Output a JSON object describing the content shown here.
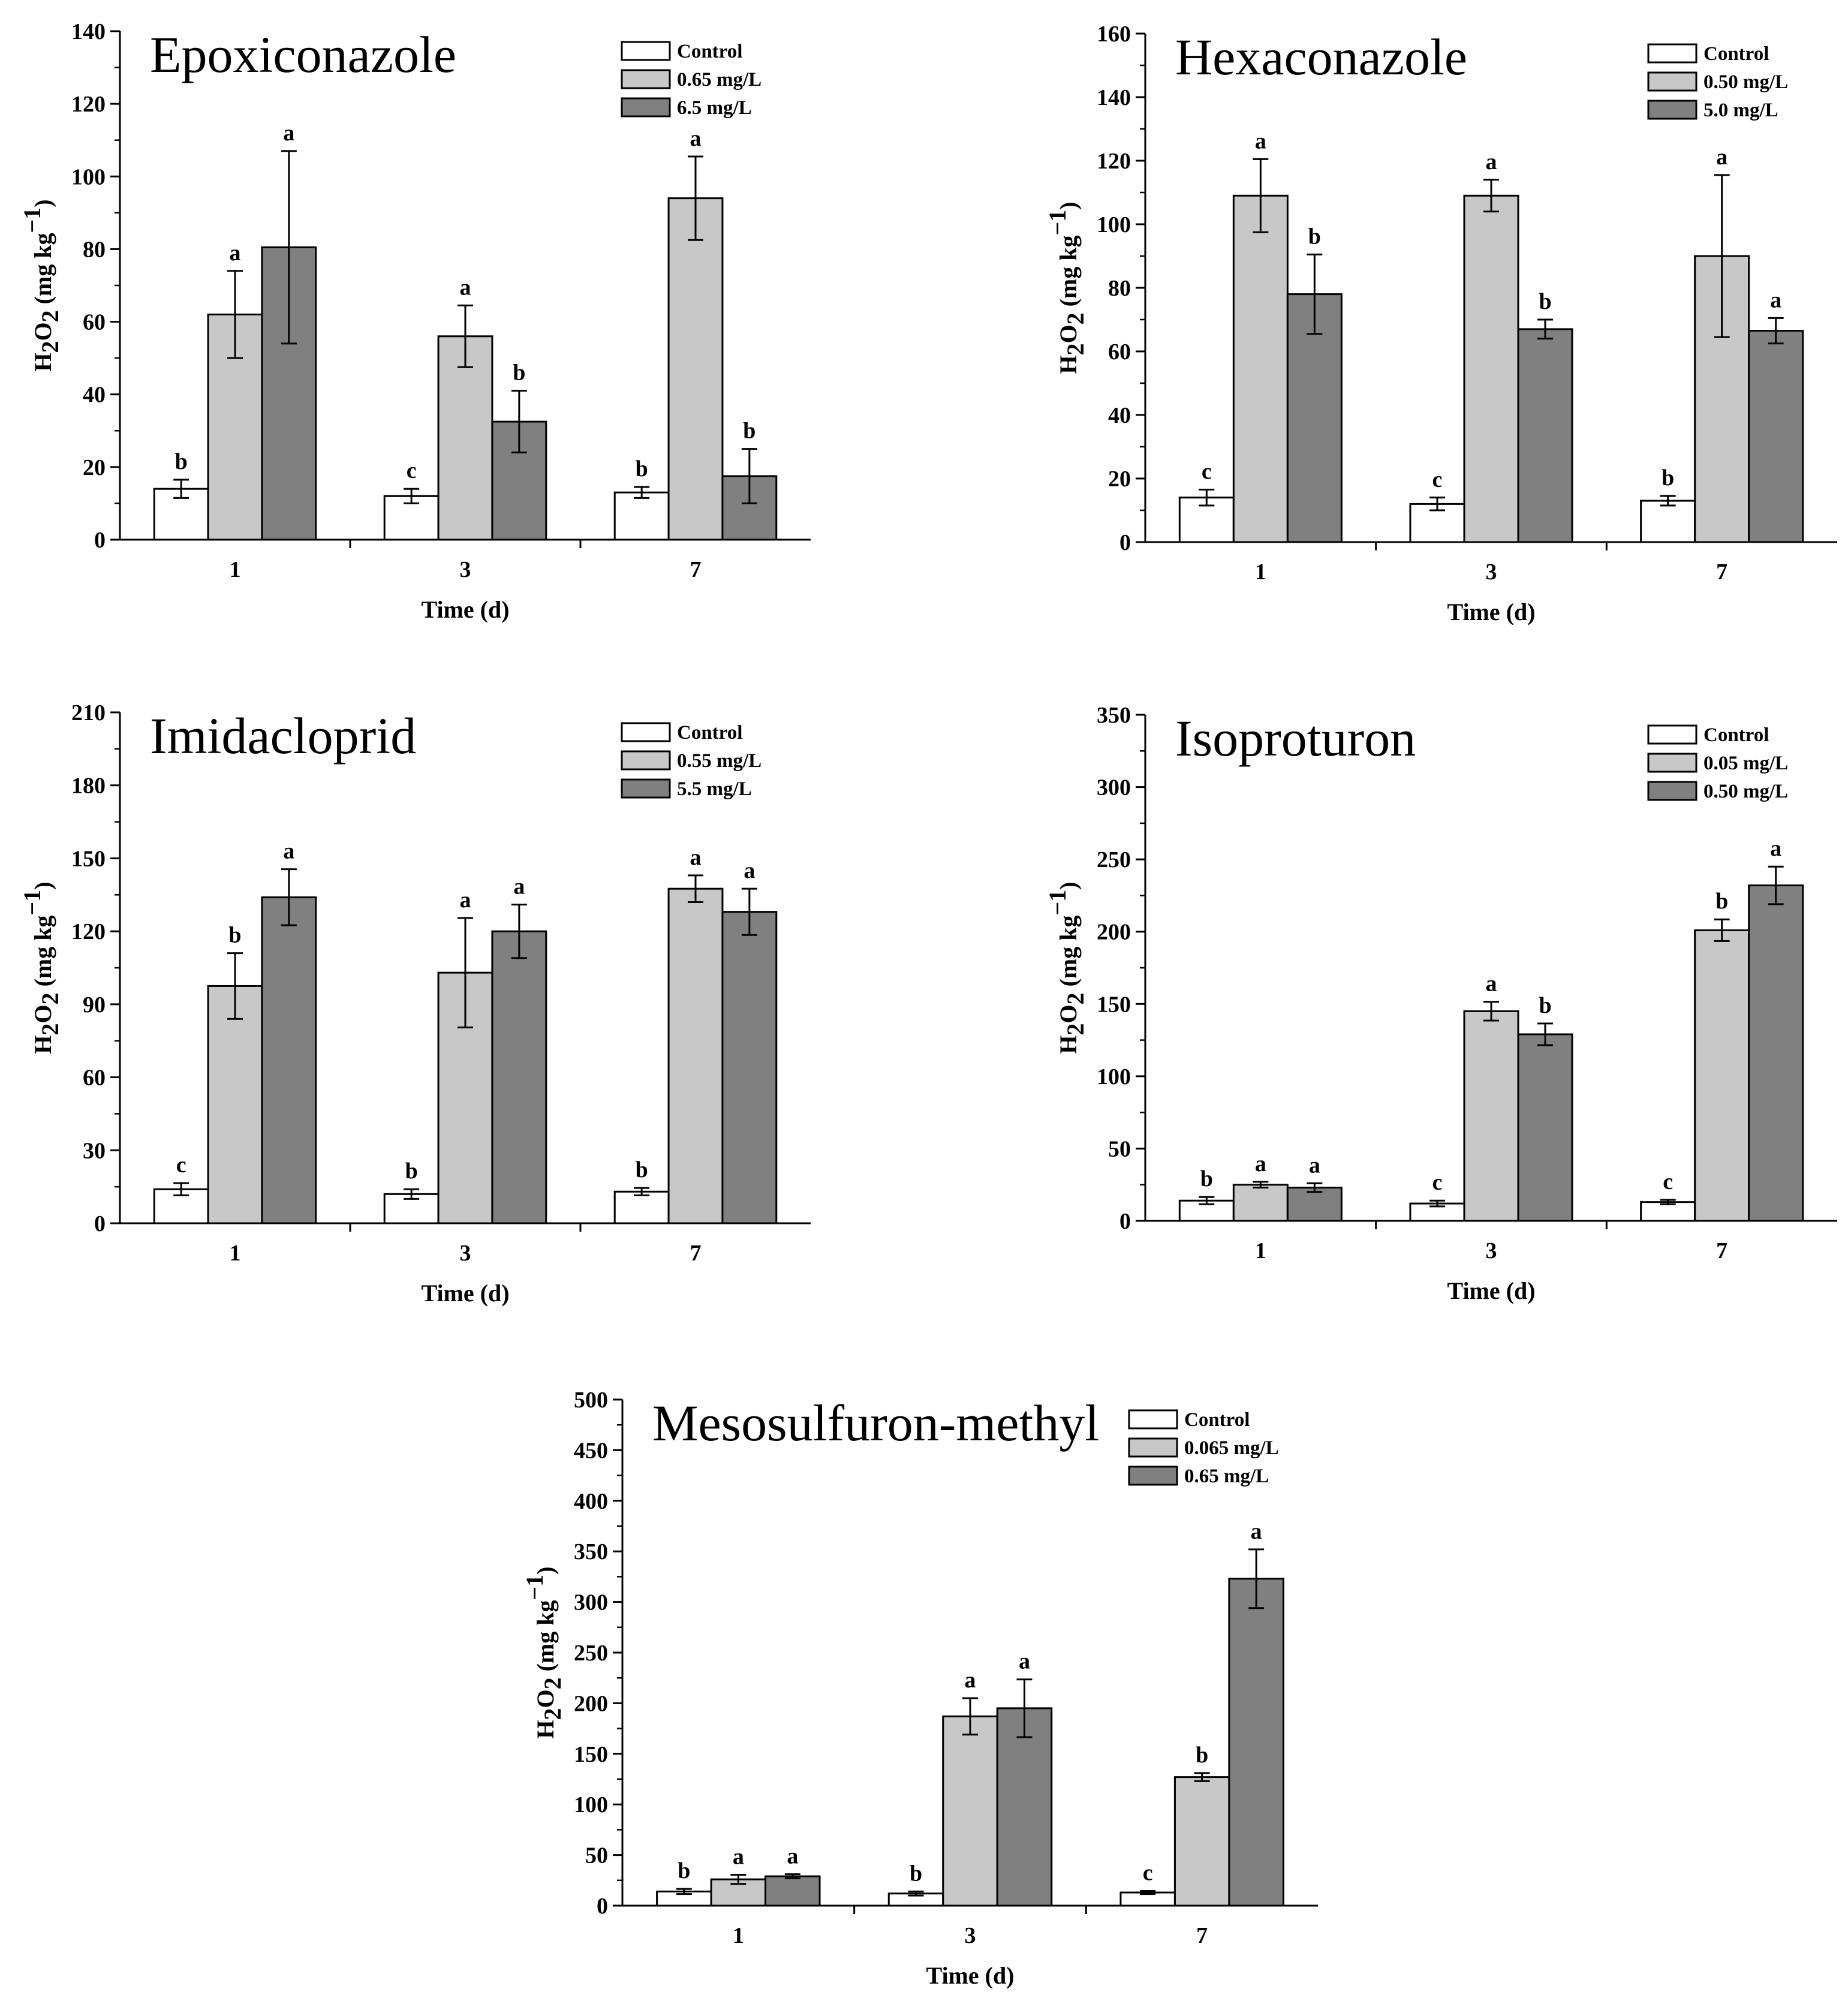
{
  "figure": {
    "colors": {
      "control": "#ffffff",
      "low": "#c8c8c8",
      "high": "#808080",
      "stroke": "#000000"
    }
  },
  "chart_data": [
    {
      "type": "bar",
      "title": "Epoxiconazole",
      "xlabel": "Time (d)",
      "ylabel": "H2O2 (mg kg-1)",
      "ylim": [
        0,
        140
      ],
      "yticks": [
        0,
        20,
        40,
        60,
        80,
        100,
        120,
        140
      ],
      "categories": [
        "1",
        "3",
        "7"
      ],
      "series": [
        {
          "name": "Control",
          "values": [
            14,
            12,
            13
          ],
          "errors": [
            2.5,
            2,
            1.5
          ],
          "letters": [
            "b",
            "c",
            "b"
          ]
        },
        {
          "name": "0.65 mg/L",
          "values": [
            62,
            56,
            94
          ],
          "errors": [
            12,
            8.5,
            11.5
          ],
          "letters": [
            "a",
            "a",
            "a"
          ]
        },
        {
          "name": "6.5 mg/L",
          "values": [
            80.5,
            32.5,
            17.5
          ],
          "errors": [
            26.5,
            8.5,
            7.5
          ],
          "letters": [
            "a",
            "b",
            "b"
          ]
        }
      ],
      "legend": "top-right"
    },
    {
      "type": "bar",
      "title": "Hexaconazole",
      "xlabel": "Time (d)",
      "ylabel": "H2O2 (mg kg-1)",
      "ylim": [
        0,
        160
      ],
      "yticks": [
        0,
        20,
        40,
        60,
        80,
        100,
        120,
        140,
        160
      ],
      "categories": [
        "1",
        "3",
        "7"
      ],
      "series": [
        {
          "name": "Control",
          "values": [
            14,
            12,
            13
          ],
          "errors": [
            2.5,
            2,
            1.5
          ],
          "letters": [
            "c",
            "c",
            "b"
          ]
        },
        {
          "name": "0.50 mg/L",
          "values": [
            109,
            109,
            90
          ],
          "errors": [
            11.5,
            5,
            25.5
          ],
          "letters": [
            "a",
            "a",
            "a"
          ]
        },
        {
          "name": "5.0 mg/L",
          "values": [
            78,
            67,
            66.5
          ],
          "errors": [
            12.5,
            3,
            4
          ],
          "letters": [
            "b",
            "b",
            "a"
          ]
        }
      ],
      "legend": "top-right"
    },
    {
      "type": "bar",
      "title": "Imidacloprid",
      "xlabel": "Time (d)",
      "ylabel": "H2O2 (mg kg-1)",
      "ylim": [
        0,
        210
      ],
      "yticks": [
        0,
        30,
        60,
        90,
        120,
        150,
        180,
        210
      ],
      "categories": [
        "1",
        "3",
        "7"
      ],
      "series": [
        {
          "name": "Control",
          "values": [
            14,
            12,
            13
          ],
          "errors": [
            2.5,
            2,
            1.5
          ],
          "letters": [
            "c",
            "b",
            "b"
          ]
        },
        {
          "name": "0.55 mg/L",
          "values": [
            97.5,
            103,
            137.5
          ],
          "errors": [
            13.5,
            22.5,
            5.5
          ],
          "letters": [
            "b",
            "a",
            "a"
          ]
        },
        {
          "name": "5.5 mg/L",
          "values": [
            134,
            120,
            128
          ],
          "errors": [
            11.5,
            11,
            9.5
          ],
          "letters": [
            "a",
            "a",
            "a"
          ]
        }
      ],
      "legend": "top-right"
    },
    {
      "type": "bar",
      "title": "Isoproturon",
      "xlabel": "Time (d)",
      "ylabel": "H2O2 (mg kg-1)",
      "ylim": [
        0,
        350
      ],
      "yticks": [
        0,
        50,
        100,
        150,
        200,
        250,
        300,
        350
      ],
      "categories": [
        "1",
        "3",
        "7"
      ],
      "series": [
        {
          "name": "Control",
          "values": [
            14,
            12,
            13
          ],
          "errors": [
            2.5,
            2,
            1.5
          ],
          "letters": [
            "b",
            "c",
            "c"
          ]
        },
        {
          "name": "0.05 mg/L",
          "values": [
            25,
            145,
            201
          ],
          "errors": [
            2,
            6.5,
            7.5
          ],
          "letters": [
            "a",
            "a",
            "b"
          ]
        },
        {
          "name": "0.50 mg/L",
          "values": [
            23,
            129,
            232
          ],
          "errors": [
            3,
            7.5,
            13
          ],
          "letters": [
            "a",
            "b",
            "a"
          ]
        }
      ],
      "legend": "top-right"
    },
    {
      "type": "bar",
      "title": "Mesosulfuron-methyl",
      "xlabel": "Time (d)",
      "ylabel": "H2O2 (mg kg-1)",
      "ylim": [
        0,
        500
      ],
      "yticks": [
        0,
        50,
        100,
        150,
        200,
        250,
        300,
        350,
        400,
        450,
        500
      ],
      "categories": [
        "1",
        "3",
        "7"
      ],
      "series": [
        {
          "name": "Control",
          "values": [
            14,
            12,
            13
          ],
          "errors": [
            2.5,
            2,
            1.5
          ],
          "letters": [
            "b",
            "b",
            "c"
          ]
        },
        {
          "name": "0.065 mg/L",
          "values": [
            26,
            187,
            127
          ],
          "errors": [
            4.5,
            18,
            4
          ],
          "letters": [
            "a",
            "a",
            "b"
          ]
        },
        {
          "name": "0.65 mg/L",
          "values": [
            29,
            195,
            323
          ],
          "errors": [
            2,
            28.5,
            29
          ],
          "letters": [
            "a",
            "a",
            "a"
          ]
        }
      ],
      "legend": "top-right"
    }
  ]
}
